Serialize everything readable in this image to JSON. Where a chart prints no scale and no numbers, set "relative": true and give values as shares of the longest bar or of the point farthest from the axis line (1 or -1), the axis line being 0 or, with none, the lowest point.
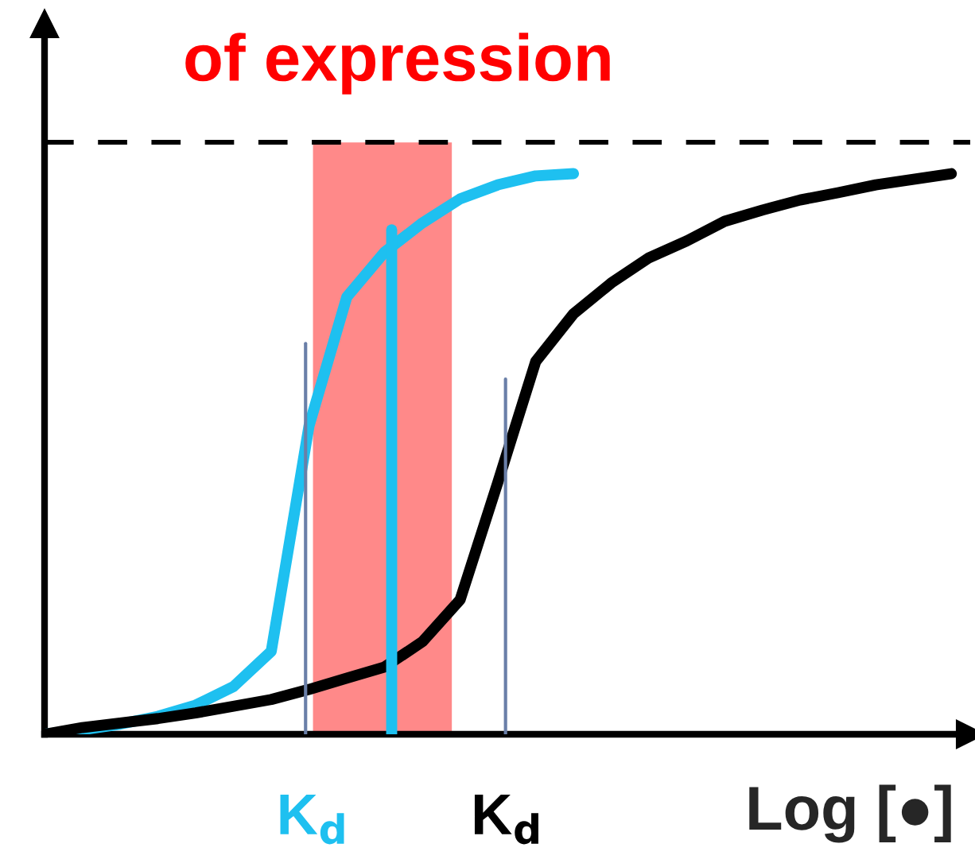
{
  "chart_data": {
    "type": "line",
    "relative": true,
    "title": "of expression",
    "xlabel": "Log [●]",
    "categories": [
      null,
      null,
      null,
      null,
      null,
      null,
      null,
      null,
      null,
      null,
      null,
      null,
      null,
      null,
      null,
      null,
      null,
      null,
      null,
      null,
      null,
      null,
      null,
      null,
      null
    ],
    "series": [
      {
        "color": "#1ec0f0",
        "values": [
          0,
          0.008,
          0.018,
          0.032,
          0.052,
          0.085,
          0.148,
          0.55,
          0.78,
          0.86,
          0.912,
          0.955,
          0.98,
          0.996,
          1.0,
          null,
          null,
          null,
          null,
          null,
          null,
          null,
          null,
          null,
          null
        ]
      },
      {
        "color": "#000000",
        "values": [
          0,
          0.012,
          0.02,
          0.028,
          0.038,
          0.05,
          0.062,
          0.08,
          0.1,
          0.12,
          0.165,
          0.24,
          0.45,
          0.665,
          0.75,
          0.805,
          0.85,
          0.88,
          0.915,
          0.935,
          0.953,
          0.966,
          0.98,
          0.99,
          1.0
        ]
      }
    ],
    "ref_lines": [
      {
        "axis": "y",
        "value": 1.056,
        "color": "#000000",
        "line_style": "dashed"
      }
    ],
    "annotations": [
      "K$_{d}$",
      "K$_{d}$"
    ],
    "legend": false,
    "line_style": "solid",
    "marker": "none"
  }
}
